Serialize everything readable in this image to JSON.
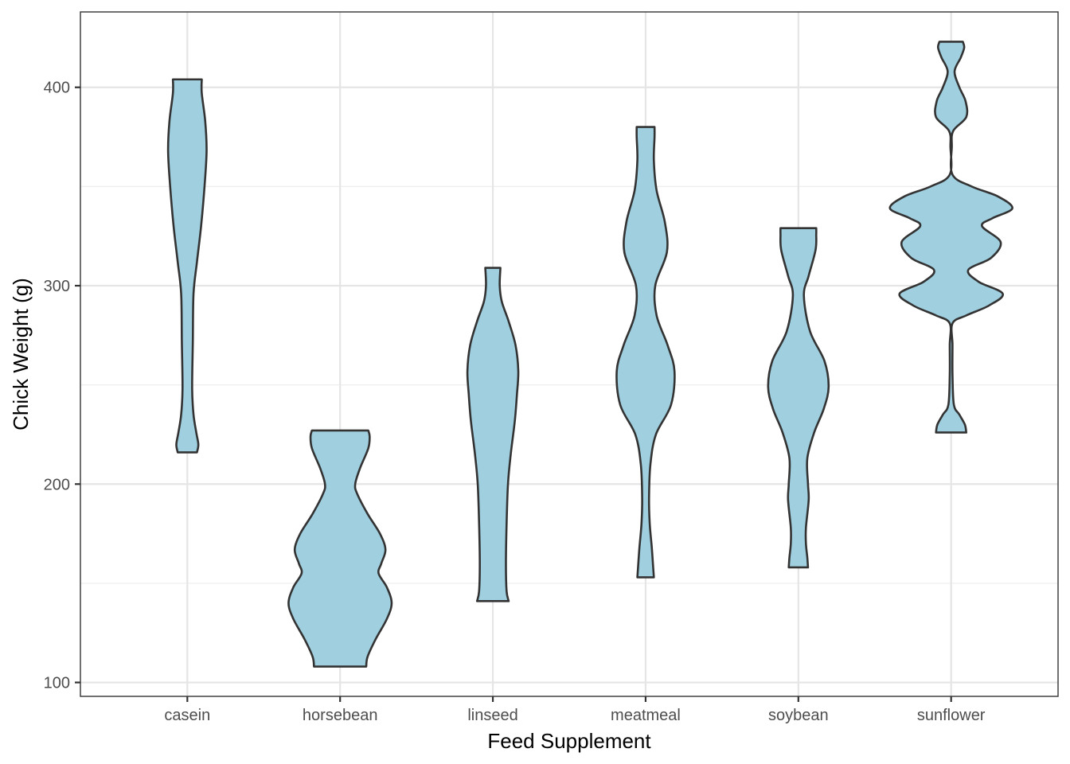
{
  "chart_data": {
    "type": "violin",
    "xlabel": "Feed Supplement",
    "ylabel": "Chick Weight (g)",
    "categories": [
      "casein",
      "horsebean",
      "linseed",
      "meatmeal",
      "soybean",
      "sunflower"
    ],
    "y_ticks": [
      100,
      200,
      300,
      400
    ],
    "ylim": [
      93,
      438
    ],
    "grid": true,
    "fill_color": "#a0cfe0",
    "line_color": "#333333",
    "violins": [
      {
        "category": "casein",
        "min": 216,
        "max": 404,
        "profile": [
          [
            216,
            0.14
          ],
          [
            220,
            0.16
          ],
          [
            226,
            0.13
          ],
          [
            235,
            0.09
          ],
          [
            248,
            0.07
          ],
          [
            272,
            0.08
          ],
          [
            296,
            0.09
          ],
          [
            312,
            0.14
          ],
          [
            330,
            0.2
          ],
          [
            350,
            0.25
          ],
          [
            368,
            0.28
          ],
          [
            383,
            0.26
          ],
          [
            397,
            0.21
          ],
          [
            404,
            0.21
          ]
        ]
      },
      {
        "category": "horsebean",
        "min": 108,
        "max": 227,
        "profile": [
          [
            108,
            0.38
          ],
          [
            113,
            0.4
          ],
          [
            122,
            0.52
          ],
          [
            132,
            0.68
          ],
          [
            140,
            0.75
          ],
          [
            148,
            0.68
          ],
          [
            155,
            0.56
          ],
          [
            160,
            0.6
          ],
          [
            167,
            0.66
          ],
          [
            175,
            0.58
          ],
          [
            185,
            0.4
          ],
          [
            195,
            0.25
          ],
          [
            200,
            0.22
          ],
          [
            208,
            0.29
          ],
          [
            218,
            0.41
          ],
          [
            224,
            0.43
          ],
          [
            227,
            0.41
          ]
        ]
      },
      {
        "category": "linseed",
        "min": 141,
        "max": 309,
        "profile": [
          [
            141,
            0.23
          ],
          [
            146,
            0.2
          ],
          [
            160,
            0.19
          ],
          [
            180,
            0.2
          ],
          [
            200,
            0.22
          ],
          [
            215,
            0.26
          ],
          [
            232,
            0.32
          ],
          [
            245,
            0.35
          ],
          [
            257,
            0.37
          ],
          [
            270,
            0.33
          ],
          [
            282,
            0.23
          ],
          [
            292,
            0.13
          ],
          [
            300,
            0.1
          ],
          [
            309,
            0.11
          ]
        ]
      },
      {
        "category": "meatmeal",
        "min": 153,
        "max": 380,
        "profile": [
          [
            153,
            0.12
          ],
          [
            158,
            0.11
          ],
          [
            168,
            0.09
          ],
          [
            180,
            0.06
          ],
          [
            193,
            0.05
          ],
          [
            210,
            0.07
          ],
          [
            225,
            0.15
          ],
          [
            240,
            0.37
          ],
          [
            257,
            0.42
          ],
          [
            270,
            0.32
          ],
          [
            285,
            0.16
          ],
          [
            300,
            0.14
          ],
          [
            317,
            0.31
          ],
          [
            332,
            0.28
          ],
          [
            348,
            0.16
          ],
          [
            363,
            0.12
          ],
          [
            375,
            0.13
          ],
          [
            380,
            0.13
          ]
        ]
      },
      {
        "category": "soybean",
        "min": 158,
        "max": 329,
        "profile": [
          [
            158,
            0.14
          ],
          [
            163,
            0.13
          ],
          [
            170,
            0.11
          ],
          [
            178,
            0.11
          ],
          [
            192,
            0.15
          ],
          [
            200,
            0.14
          ],
          [
            213,
            0.13
          ],
          [
            226,
            0.23
          ],
          [
            238,
            0.37
          ],
          [
            249,
            0.44
          ],
          [
            262,
            0.38
          ],
          [
            277,
            0.17
          ],
          [
            295,
            0.08
          ],
          [
            305,
            0.15
          ],
          [
            318,
            0.25
          ],
          [
            326,
            0.26
          ],
          [
            329,
            0.26
          ]
        ]
      },
      {
        "category": "sunflower",
        "min": 226,
        "max": 423,
        "profile": [
          [
            226,
            0.22
          ],
          [
            230,
            0.2
          ],
          [
            235,
            0.12
          ],
          [
            240,
            0.04
          ],
          [
            255,
            0.02
          ],
          [
            270,
            0.02
          ],
          [
            281,
            0.02
          ],
          [
            285,
            0.22
          ],
          [
            290,
            0.55
          ],
          [
            296,
            0.75
          ],
          [
            302,
            0.4
          ],
          [
            308,
            0.25
          ],
          [
            314,
            0.58
          ],
          [
            322,
            0.72
          ],
          [
            330,
            0.45
          ],
          [
            334,
            0.6
          ],
          [
            339,
            0.89
          ],
          [
            345,
            0.68
          ],
          [
            350,
            0.3
          ],
          [
            356,
            0.02
          ],
          [
            370,
            0.01
          ],
          [
            378,
            0.03
          ],
          [
            385,
            0.22
          ],
          [
            393,
            0.21
          ],
          [
            400,
            0.12
          ],
          [
            408,
            0.05
          ],
          [
            415,
            0.14
          ],
          [
            420,
            0.19
          ],
          [
            423,
            0.17
          ]
        ]
      }
    ]
  }
}
